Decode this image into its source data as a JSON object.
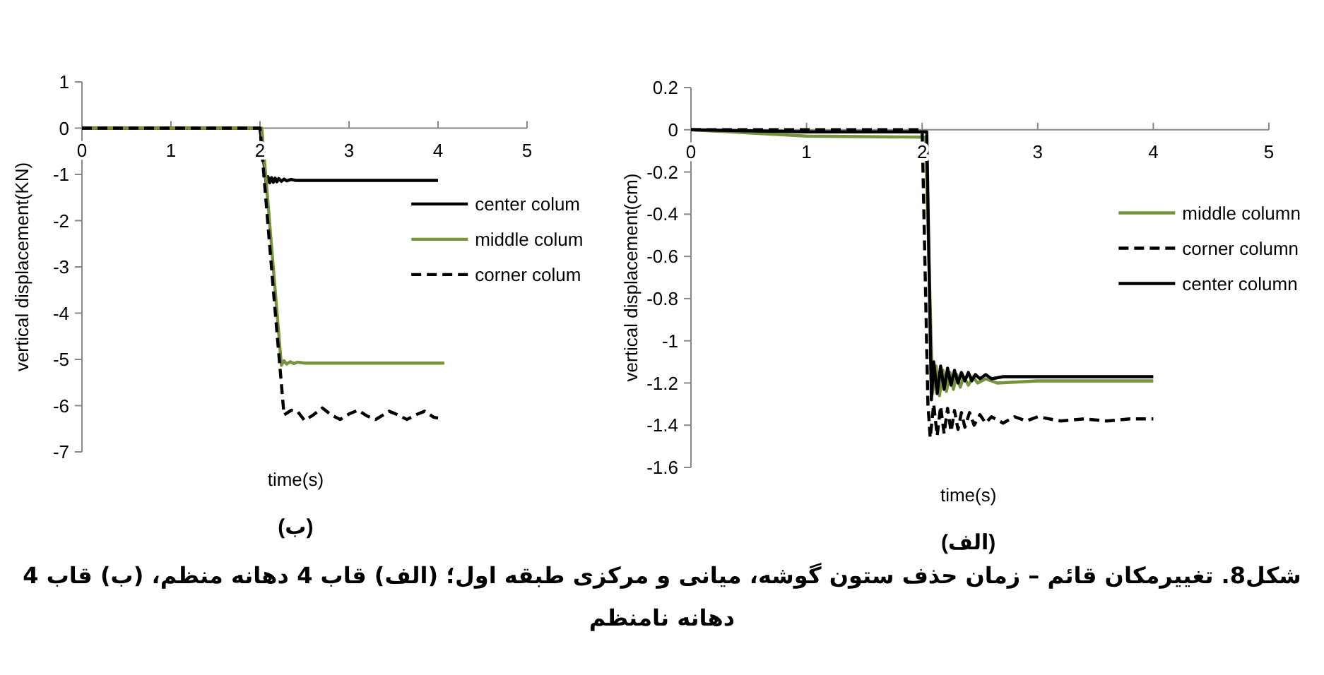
{
  "chart_data": [
    {
      "type": "line",
      "title": "(ب)",
      "xlabel": "time(s)",
      "ylabel": "vertical displacement(KN)",
      "xlim": [
        0,
        5
      ],
      "xticks": [
        0,
        1,
        2,
        3,
        4,
        5
      ],
      "ylim": [
        -7,
        1
      ],
      "yticks": [
        -7,
        -6,
        -5,
        -4,
        -3,
        -2,
        -1,
        0,
        1
      ],
      "legend": "right",
      "grid": false,
      "series": [
        {
          "name": "center colum",
          "color": "#000000",
          "line_style": "solid",
          "x": [
            0,
            1,
            2.0,
            2.07,
            2.09,
            2.11,
            2.13,
            2.15,
            2.17,
            2.19,
            2.21,
            2.24,
            2.27,
            2.3,
            2.35,
            2.4,
            2.5,
            3,
            4
          ],
          "values": [
            0,
            0,
            0,
            -1.2,
            -1.05,
            -1.18,
            -1.07,
            -1.17,
            -1.08,
            -1.16,
            -1.09,
            -1.15,
            -1.1,
            -1.14,
            -1.11,
            -1.13,
            -1.13,
            -1.13,
            -1.13
          ]
        },
        {
          "name": "middle colum",
          "color": "#77933c",
          "line_style": "solid",
          "x": [
            0,
            1,
            2.02,
            2.24,
            2.27,
            2.3,
            2.34,
            2.38,
            2.42,
            2.5,
            3,
            4.07
          ],
          "values": [
            0,
            0,
            0,
            -5.13,
            -5.03,
            -5.1,
            -5.05,
            -5.09,
            -5.06,
            -5.08,
            -5.08,
            -5.08
          ]
        },
        {
          "name": "corner colum",
          "color": "#000000",
          "line_style": "dashed",
          "x": [
            0,
            1,
            2.0,
            2.15,
            2.27,
            2.35,
            2.42,
            2.5,
            2.6,
            2.7,
            2.8,
            2.9,
            3.0,
            3.1,
            3.2,
            3.3,
            3.45,
            3.55,
            3.65,
            3.75,
            3.85,
            3.95,
            4.0
          ],
          "values": [
            0,
            0,
            0,
            -3.5,
            -6.2,
            -6.1,
            -6.12,
            -6.32,
            -6.2,
            -6.05,
            -6.2,
            -6.3,
            -6.18,
            -6.1,
            -6.22,
            -6.3,
            -6.12,
            -6.2,
            -6.3,
            -6.2,
            -6.12,
            -6.25,
            -6.27
          ]
        }
      ]
    },
    {
      "type": "line",
      "title": "(الف)",
      "xlabel": "time(s)",
      "ylabel": "vertical displacement(cm)",
      "xlim": [
        0,
        5
      ],
      "xticks": [
        0,
        1,
        2,
        3,
        4,
        5
      ],
      "ylim": [
        -1.6,
        0.2
      ],
      "yticks": [
        -1.6,
        -1.4,
        -1.2,
        -1,
        -0.8,
        -0.6,
        -0.4,
        -0.2,
        0,
        0.2
      ],
      "legend": "right",
      "grid": false,
      "annotations": [
        "شکل8. تغییرمکان قائم – زمان حذف ستون گوشه، میانی و مرکزی طبقه اول؛ (الف) قاب 4 دهانه منظم، (ب) قاب 4 دهانه نامنظم"
      ],
      "series": [
        {
          "name": "middle column",
          "color": "#77933c",
          "line_style": "solid",
          "x": [
            0,
            1,
            2.0,
            2.03,
            2.09,
            2.12,
            2.15,
            2.18,
            2.21,
            2.24,
            2.27,
            2.3,
            2.33,
            2.36,
            2.4,
            2.44,
            2.48,
            2.55,
            2.65,
            3,
            4
          ],
          "values": [
            0,
            -0.03,
            -0.035,
            -0.035,
            -1.25,
            -1.12,
            -1.26,
            -1.14,
            -1.24,
            -1.15,
            -1.23,
            -1.16,
            -1.22,
            -1.17,
            -1.21,
            -1.17,
            -1.2,
            -1.18,
            -1.2,
            -1.19,
            -1.19
          ]
        },
        {
          "name": "corner  column",
          "color": "#000000",
          "line_style": "dashed",
          "x": [
            0,
            1,
            2.0,
            2.05,
            2.07,
            2.1,
            2.13,
            2.16,
            2.19,
            2.22,
            2.25,
            2.28,
            2.31,
            2.34,
            2.37,
            2.41,
            2.45,
            2.5,
            2.55,
            2.6,
            2.7,
            2.8,
            2.9,
            3.0,
            3.2,
            3.4,
            3.6,
            3.8,
            4.0
          ],
          "values": [
            0,
            0,
            0,
            -1.3,
            -1.46,
            -1.3,
            -1.45,
            -1.31,
            -1.44,
            -1.32,
            -1.43,
            -1.33,
            -1.42,
            -1.34,
            -1.41,
            -1.34,
            -1.4,
            -1.35,
            -1.39,
            -1.36,
            -1.39,
            -1.36,
            -1.38,
            -1.36,
            -1.38,
            -1.37,
            -1.38,
            -1.37,
            -1.37
          ]
        },
        {
          "name": "center column",
          "color": "#000000",
          "line_style": "solid",
          "x": [
            0,
            1,
            2.0,
            2.04,
            2.08,
            2.1,
            2.13,
            2.16,
            2.19,
            2.22,
            2.25,
            2.28,
            2.31,
            2.34,
            2.37,
            2.4,
            2.43,
            2.46,
            2.5,
            2.55,
            2.6,
            2.7,
            3,
            4
          ],
          "values": [
            0,
            -0.01,
            -0.01,
            -0.01,
            -1.28,
            -1.1,
            -1.25,
            -1.12,
            -1.23,
            -1.13,
            -1.21,
            -1.14,
            -1.2,
            -1.15,
            -1.19,
            -1.15,
            -1.19,
            -1.16,
            -1.18,
            -1.16,
            -1.18,
            -1.17,
            -1.17,
            -1.17
          ]
        }
      ]
    }
  ]
}
